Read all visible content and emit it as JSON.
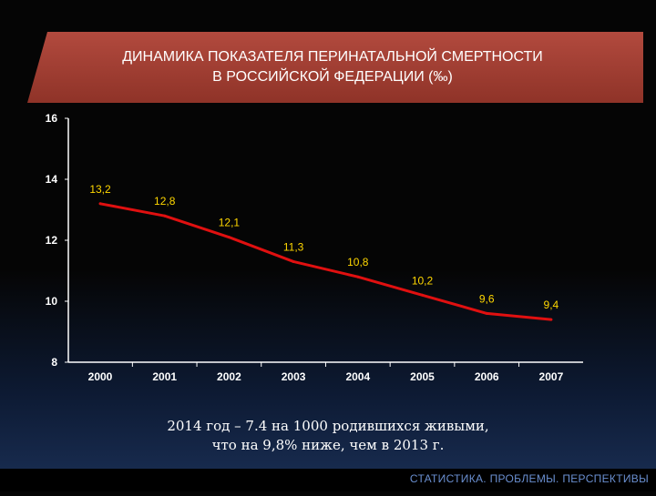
{
  "title": {
    "line1": "ДИНАМИКА ПОКАЗАТЕЛЯ ПЕРИНАТАЛЬНОЙ СМЕРТНОСТИ",
    "line2": "В РОССИЙСКОЙ ФЕДЕРАЦИИ (‰)"
  },
  "note": {
    "line1": "2014 год – 7.4 на 1000 родившихся живыми,",
    "line2": "что на 9,8% ниже, чем в 2013 г."
  },
  "footer": "СТАТИСТИКА. ПРОБЛЕМЫ. ПЕРСПЕКТИВЫ",
  "colors": {
    "line": "#e01010",
    "labels": "#ffd700",
    "axis": "#ffffff",
    "banner": "#a33f34"
  },
  "chart_data": {
    "type": "line",
    "x": [
      "2000",
      "2001",
      "2002",
      "2003",
      "2004",
      "2005",
      "2006",
      "2007"
    ],
    "series": [
      {
        "values": [
          13.2,
          12.8,
          12.1,
          11.3,
          10.8,
          10.2,
          9.6,
          9.4
        ],
        "labels": [
          "13,2",
          "12,8",
          "12,1",
          "11,3",
          "10,8",
          "10,2",
          "9,6",
          "9,4"
        ]
      }
    ],
    "yticks": [
      "8",
      "10",
      "12",
      "14",
      "16"
    ],
    "ylim": [
      8,
      16
    ],
    "grid": false,
    "legend": "none"
  }
}
